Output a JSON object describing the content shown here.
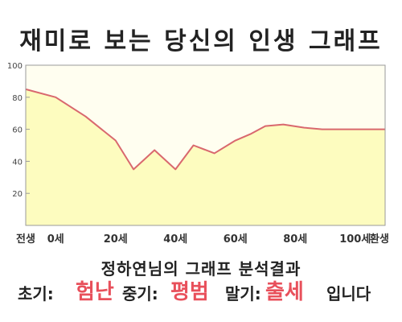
{
  "header": {
    "title": "재미로 보는 당신의 인생 그래프"
  },
  "result": {
    "subtitle": "정하연님의 그래프 분석결과",
    "early_label": "초기:",
    "early_value": "험난",
    "middle_label": "중기:",
    "middle_value": "평범",
    "late_label": "말기:",
    "late_value": "출세",
    "ending": "입니다"
  },
  "colors": {
    "accent": "#e8505b",
    "fill": "#fdfcbf",
    "line": "#d9686e",
    "bg": "#fffef0"
  },
  "chart_data": {
    "type": "area",
    "title": "재미로 보는 당신의 인생 그래프",
    "xlim": [
      -10,
      110
    ],
    "ylim": [
      0,
      100
    ],
    "yticks": [
      20,
      40,
      60,
      80,
      100
    ],
    "xtick_positions": [
      -10,
      0,
      20,
      40,
      60,
      80,
      100,
      110
    ],
    "xtick_labels": [
      "전생",
      "0세",
      "20세",
      "40세",
      "60세",
      "80세",
      "100세",
      "환생"
    ],
    "grid": false,
    "series": [
      {
        "x": [
          -10,
          0,
          10,
          20,
          26,
          33,
          40,
          46,
          53,
          60,
          65,
          70,
          76,
          83,
          89,
          96,
          104,
          110
        ],
        "values": [
          85,
          80,
          68,
          53,
          35,
          47,
          35,
          50,
          45,
          53,
          57,
          62,
          63,
          61,
          60,
          60,
          60,
          60
        ]
      }
    ]
  }
}
